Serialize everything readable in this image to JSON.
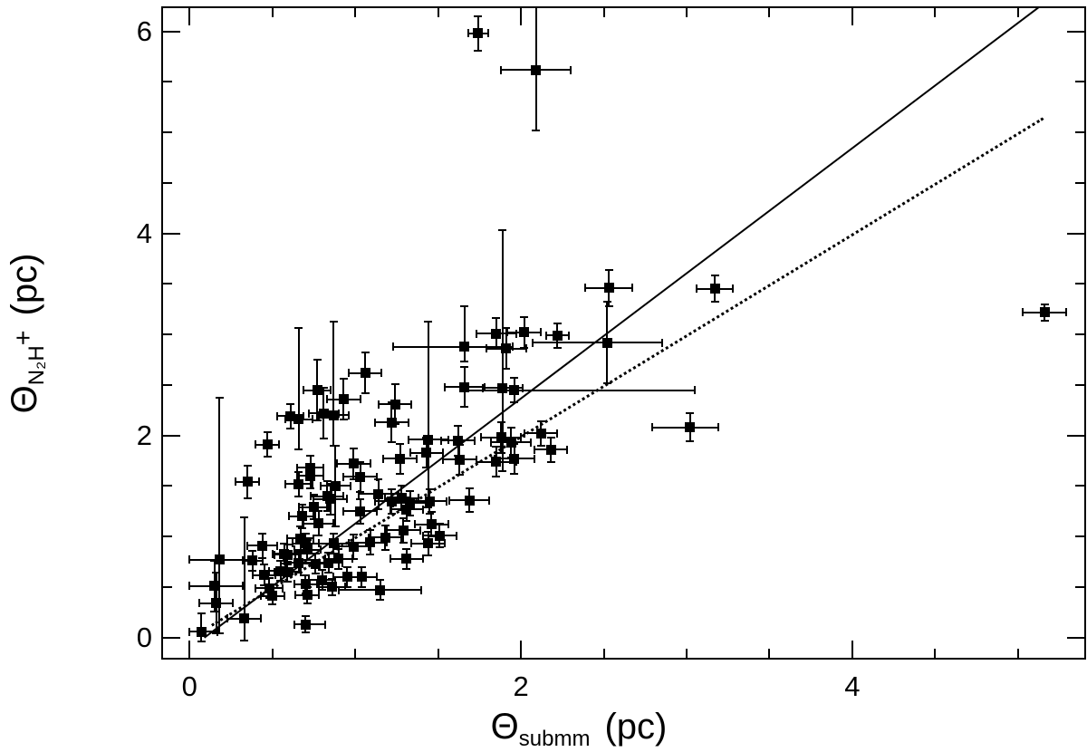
{
  "colors": {
    "foreground": "#000000",
    "background": "#ffffff"
  },
  "x_axis": {
    "symbol": "Θ",
    "subscript": "submm",
    "unit": "(pc)",
    "tick_labels": [
      {
        "value": 0,
        "label": "0"
      },
      {
        "value": 2,
        "label": "2"
      },
      {
        "value": 4,
        "label": "4"
      }
    ],
    "major_ticks": [
      0,
      2,
      4
    ],
    "minor_ticks": [
      0.5,
      1,
      1.5,
      2.5,
      3,
      3.5,
      4.5,
      5
    ]
  },
  "y_axis": {
    "symbol": "Θ",
    "subscript": "N₂H",
    "superscript": "+",
    "unit": "(pc)",
    "tick_labels": [
      {
        "value": 0,
        "label": "0"
      },
      {
        "value": 2,
        "label": "2"
      },
      {
        "value": 4,
        "label": "4"
      },
      {
        "value": 6,
        "label": "6"
      }
    ],
    "major_ticks": [
      0,
      2,
      4,
      6
    ],
    "minor_ticks": [
      0.5,
      1,
      1.5,
      2.5,
      3,
      3.5,
      4.5,
      5,
      5.5
    ]
  },
  "chart_data": {
    "type": "scatter",
    "title": "",
    "xlabel": "Θ_submm (pc)",
    "ylabel": "Θ_N2H+ (pc)",
    "x_range": [
      -0.16,
      5.4
    ],
    "y_range": [
      -0.2,
      6.23
    ],
    "grid": false,
    "legend": "none",
    "marker": "filled-square",
    "points_format": "[x, y, x_err_minus, x_err_plus, y_err_minus, y_err_plus]",
    "points": [
      [
        0.07,
        0.06,
        0.07,
        0.1,
        0.1,
        0.18
      ],
      [
        0.16,
        0.34,
        0.1,
        0.1,
        0.3,
        0.3
      ],
      [
        0.15,
        0.51,
        0.15,
        0.17,
        0.25,
        0.25
      ],
      [
        0.18,
        0.77,
        0.18,
        0.18,
        0.73,
        1.6
      ],
      [
        0.33,
        0.19,
        0.1,
        0.1,
        0.22,
        1.0
      ],
      [
        0.7,
        0.13,
        0.07,
        0.12,
        0.08,
        0.08
      ],
      [
        0.38,
        0.76,
        0.06,
        0.06,
        0.1,
        0.1
      ],
      [
        0.44,
        0.91,
        0.09,
        0.09,
        0.12,
        0.12
      ],
      [
        0.45,
        0.62,
        0.07,
        0.07,
        0.1,
        0.1
      ],
      [
        0.48,
        0.49,
        0.08,
        0.08,
        0.1,
        0.1
      ],
      [
        0.5,
        0.41,
        0.07,
        0.07,
        0.08,
        0.08
      ],
      [
        0.55,
        0.66,
        0.07,
        0.07,
        0.1,
        0.1
      ],
      [
        0.57,
        0.83,
        0.07,
        0.07,
        0.1,
        0.1
      ],
      [
        0.59,
        0.65,
        0.08,
        0.08,
        0.1,
        0.1
      ],
      [
        0.59,
        0.82,
        0.08,
        0.08,
        0.1,
        0.1
      ],
      [
        0.66,
        0.74,
        0.08,
        0.08,
        0.1,
        0.1
      ],
      [
        0.67,
        0.98,
        0.08,
        0.08,
        0.12,
        0.12
      ],
      [
        0.7,
        0.93,
        0.08,
        0.08,
        0.1,
        0.1
      ],
      [
        0.7,
        0.53,
        0.07,
        0.07,
        0.09,
        0.09
      ],
      [
        0.71,
        0.87,
        0.08,
        0.08,
        0.1,
        0.1
      ],
      [
        0.71,
        0.42,
        0.07,
        0.07,
        0.08,
        0.08
      ],
      [
        0.76,
        0.73,
        0.08,
        0.08,
        0.1,
        0.1
      ],
      [
        0.78,
        1.13,
        0.09,
        0.09,
        0.12,
        0.12
      ],
      [
        0.68,
        1.2,
        0.08,
        0.08,
        0.12,
        0.12
      ],
      [
        0.8,
        0.57,
        0.08,
        0.08,
        0.1,
        0.1
      ],
      [
        0.84,
        0.74,
        0.08,
        0.08,
        0.1,
        0.1
      ],
      [
        0.86,
        0.5,
        0.08,
        0.08,
        0.08,
        0.08
      ],
      [
        0.83,
        1.4,
        0.1,
        0.1,
        0.15,
        0.15
      ],
      [
        0.85,
        1.37,
        0.1,
        0.1,
        0.15,
        0.15
      ],
      [
        0.87,
        0.93,
        0.09,
        0.09,
        0.1,
        0.1
      ],
      [
        0.9,
        0.78,
        0.08,
        0.08,
        0.1,
        0.1
      ],
      [
        0.95,
        0.6,
        0.08,
        0.08,
        0.1,
        0.1
      ],
      [
        0.99,
        0.9,
        0.09,
        0.09,
        0.12,
        0.12
      ],
      [
        1.04,
        0.6,
        0.09,
        0.09,
        0.1,
        0.1
      ],
      [
        1.09,
        0.94,
        0.1,
        0.1,
        0.12,
        0.12
      ],
      [
        1.18,
        0.99,
        0.1,
        0.1,
        0.12,
        0.12
      ],
      [
        1.29,
        1.06,
        0.1,
        0.1,
        0.12,
        0.12
      ],
      [
        1.15,
        0.47,
        0.25,
        0.25,
        0.1,
        0.1
      ],
      [
        1.31,
        1.27,
        0.1,
        0.1,
        0.12,
        0.12
      ],
      [
        1.31,
        0.78,
        0.1,
        0.1,
        0.1,
        0.1
      ],
      [
        1.22,
        1.35,
        0.1,
        0.1,
        0.12,
        0.12
      ],
      [
        1.33,
        1.33,
        0.1,
        0.1,
        0.12,
        0.12
      ],
      [
        1.14,
        1.42,
        0.12,
        0.12,
        0.15,
        0.15
      ],
      [
        1.28,
        1.38,
        0.1,
        0.1,
        0.12,
        0.12
      ],
      [
        1.03,
        1.25,
        0.1,
        0.1,
        0.12,
        0.12
      ],
      [
        1.03,
        1.59,
        0.1,
        0.1,
        0.15,
        0.15
      ],
      [
        0.99,
        1.72,
        0.1,
        0.1,
        0.15,
        0.15
      ],
      [
        0.88,
        1.5,
        0.09,
        0.09,
        0.4,
        0.4
      ],
      [
        0.73,
        1.68,
        0.08,
        0.08,
        0.12,
        0.12
      ],
      [
        0.73,
        1.6,
        0.08,
        0.08,
        0.12,
        0.12
      ],
      [
        0.66,
        1.52,
        0.08,
        0.08,
        0.12,
        0.12
      ],
      [
        0.75,
        1.29,
        0.09,
        0.09,
        0.12,
        0.12
      ],
      [
        0.35,
        1.54,
        0.07,
        0.07,
        0.16,
        0.16
      ],
      [
        0.47,
        1.91,
        0.07,
        0.07,
        0.12,
        0.12
      ],
      [
        0.61,
        2.19,
        0.08,
        0.08,
        0.12,
        0.12
      ],
      [
        0.66,
        2.16,
        0.08,
        0.08,
        0.3,
        0.9
      ],
      [
        0.77,
        2.45,
        0.08,
        0.08,
        0.3,
        0.3
      ],
      [
        0.93,
        2.36,
        0.1,
        0.1,
        0.2,
        0.2
      ],
      [
        0.87,
        2.2,
        0.09,
        0.09,
        0.3,
        0.93
      ],
      [
        0.81,
        2.22,
        0.09,
        0.09,
        0.25,
        0.25
      ],
      [
        1.06,
        2.62,
        0.1,
        0.1,
        0.2,
        0.2
      ],
      [
        1.24,
        2.31,
        0.1,
        0.1,
        0.2,
        0.2
      ],
      [
        1.22,
        2.13,
        0.1,
        0.1,
        0.2,
        0.2
      ],
      [
        1.44,
        1.96,
        0.12,
        0.12,
        0.67,
        1.17
      ],
      [
        1.62,
        1.95,
        0.1,
        0.1,
        0.15,
        0.15
      ],
      [
        1.63,
        1.76,
        0.1,
        0.1,
        0.15,
        0.15
      ],
      [
        1.43,
        1.83,
        0.1,
        0.1,
        0.15,
        0.15
      ],
      [
        1.27,
        1.77,
        0.1,
        0.1,
        0.15,
        0.15
      ],
      [
        1.46,
        1.12,
        0.1,
        0.1,
        0.12,
        0.12
      ],
      [
        1.51,
        1.01,
        0.1,
        0.1,
        0.12,
        0.12
      ],
      [
        1.45,
        1.35,
        0.1,
        0.1,
        0.12,
        0.12
      ],
      [
        1.69,
        1.36,
        0.12,
        0.12,
        0.12,
        0.12
      ],
      [
        1.44,
        0.93,
        0.1,
        0.1,
        0.12,
        0.12
      ],
      [
        1.85,
        1.74,
        0.12,
        0.12,
        0.15,
        0.15
      ],
      [
        1.96,
        1.77,
        0.12,
        0.12,
        0.15,
        0.15
      ],
      [
        1.88,
        1.98,
        0.12,
        0.12,
        0.15,
        0.15
      ],
      [
        1.94,
        1.93,
        0.12,
        0.12,
        0.15,
        0.15
      ],
      [
        2.12,
        2.02,
        0.1,
        0.1,
        0.12,
        0.12
      ],
      [
        2.18,
        1.86,
        0.1,
        0.1,
        0.12,
        0.12
      ],
      [
        1.89,
        2.47,
        0.12,
        0.12,
        0.82,
        1.56
      ],
      [
        1.96,
        2.45,
        0.3,
        1.09,
        0.12,
        0.12
      ],
      [
        1.66,
        2.48,
        0.12,
        0.12,
        0.2,
        0.2
      ],
      [
        1.66,
        2.88,
        0.43,
        0.29,
        0.15,
        0.4
      ],
      [
        1.91,
        2.86,
        0.12,
        0.12,
        0.2,
        0.2
      ],
      [
        2.02,
        3.02,
        0.1,
        0.1,
        0.15,
        0.15
      ],
      [
        1.85,
        3.01,
        0.12,
        0.12,
        0.15,
        0.15
      ],
      [
        2.22,
        2.99,
        0.07,
        0.07,
        0.12,
        0.12
      ],
      [
        2.52,
        2.92,
        0.45,
        0.33,
        0.4,
        0.4
      ],
      [
        2.53,
        3.46,
        0.14,
        0.14,
        0.18,
        0.18
      ],
      [
        3.17,
        3.45,
        0.11,
        0.11,
        0.13,
        0.13
      ],
      [
        3.02,
        2.08,
        0.23,
        0.17,
        0.14,
        0.14
      ],
      [
        5.16,
        3.22,
        0.13,
        0.13,
        0.08,
        0.08
      ],
      [
        1.74,
        5.98,
        0.06,
        0.06,
        0.17,
        0.17
      ],
      [
        2.09,
        5.62,
        0.21,
        0.21,
        0.6,
        0.69
      ]
    ],
    "lines": [
      {
        "name": "solid-fit-line",
        "style": "solid",
        "from": [
          0.087,
          0.009
        ],
        "to": [
          5.154,
          6.287
        ],
        "relation": "y ≈ 1.2x"
      },
      {
        "name": "dotted-equality-line",
        "style": "dotted",
        "from": [
          0.13,
          0.13
        ],
        "to": [
          5.15,
          5.15
        ],
        "relation": "y = x"
      }
    ]
  }
}
